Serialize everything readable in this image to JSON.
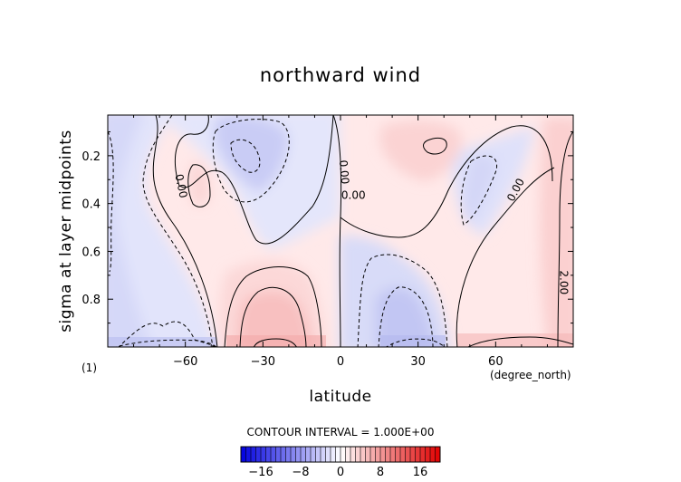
{
  "chart_data": {
    "type": "heatmap",
    "title": "northward wind",
    "xlabel": "latitude",
    "ylabel": "sigma at layer midpoints",
    "x_units": "(degree_north)",
    "panel_tag": "(1)",
    "xlim": [
      -90,
      90
    ],
    "ylim": [
      1.0,
      0.03
    ],
    "x_ticks": [
      -60,
      -30,
      0,
      30,
      60
    ],
    "x_tick_labels": [
      "-60",
      "-30",
      "0",
      "30",
      "60"
    ],
    "y_ticks": [
      0.2,
      0.4,
      0.6,
      0.8
    ],
    "y_tick_labels": [
      "0.2",
      "0.4",
      "0.6",
      "0.8"
    ],
    "contour_interval_text": "CONTOUR INTERVAL = 1.000E+00",
    "contour_labels": [
      {
        "text": "0.00",
        "x": -63,
        "y": 0.33
      },
      {
        "text": "0.00",
        "x": 0,
        "y": 0.27
      },
      {
        "text": "0.00",
        "x": 5,
        "y": 0.38
      },
      {
        "text": "0.00",
        "x": 69,
        "y": 0.35
      },
      {
        "text": "2.00",
        "x": 85,
        "y": 0.73
      }
    ],
    "colorbar": {
      "range": [
        -20,
        20
      ],
      "ticks": [
        -16,
        -8,
        0,
        8,
        16
      ],
      "tick_labels": [
        "-16",
        "-8",
        "0",
        "8",
        "16"
      ],
      "negative_color": "#0000e0",
      "zero_color": "#ffffff",
      "positive_color": "#e00000"
    },
    "grid": false,
    "legend": "colorbar-bottom"
  }
}
